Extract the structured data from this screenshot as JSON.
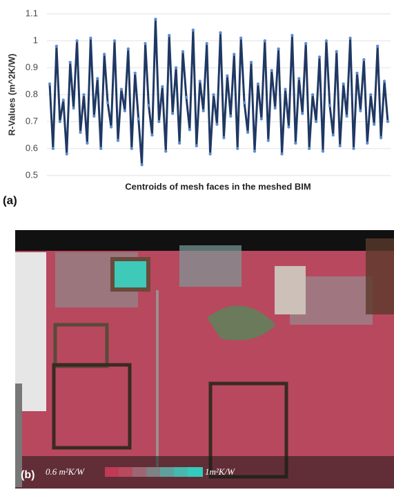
{
  "chart_data": {
    "type": "line",
    "y_label": "R-Values (m^2K/W)",
    "x_label": "Centroids of mesh faces in the meshed BIM",
    "ylim": [
      0.5,
      1.1
    ],
    "yticks": [
      0.5,
      0.6,
      0.7,
      0.8,
      0.9,
      1,
      1.1
    ],
    "grid": true,
    "series": [
      {
        "color": "#1f3864",
        "marker_color": "#5b8fd4",
        "values": [
          0.84,
          0.6,
          0.98,
          0.7,
          0.78,
          0.58,
          0.92,
          0.75,
          1.0,
          0.66,
          0.8,
          0.62,
          1.01,
          0.72,
          0.86,
          0.6,
          0.95,
          0.77,
          0.68,
          1.0,
          0.63,
          0.82,
          0.74,
          0.97,
          0.6,
          0.88,
          0.71,
          0.54,
          0.99,
          0.76,
          0.65,
          1.08,
          0.7,
          0.83,
          0.59,
          1.02,
          0.73,
          0.9,
          0.62,
          0.96,
          0.79,
          0.67,
          1.04,
          0.61,
          0.85,
          0.74,
          0.99,
          0.58,
          0.8,
          0.69,
          1.03,
          0.64,
          0.87,
          0.72,
          0.95,
          0.6,
          1.01,
          0.77,
          0.66,
          0.92,
          0.59,
          0.84,
          0.71,
          1.0,
          0.63,
          0.89,
          0.75,
          0.97,
          0.58,
          0.82,
          0.68,
          1.02,
          0.62,
          0.86,
          0.73,
          0.99,
          0.6,
          0.8,
          0.7,
          0.94,
          0.59,
          1.0,
          0.76,
          0.65,
          0.96,
          0.61,
          0.84,
          0.72,
          1.01,
          0.6,
          0.88,
          0.74,
          0.93,
          0.62,
          0.8,
          0.69,
          0.98,
          0.64,
          0.85,
          0.7
        ]
      }
    ]
  },
  "panel_a_label": "(a)",
  "panel_b": {
    "label": "(b)",
    "colorbar_min_label": "0.6 m²K/W",
    "colorbar_max_label": "1m²K/W"
  }
}
